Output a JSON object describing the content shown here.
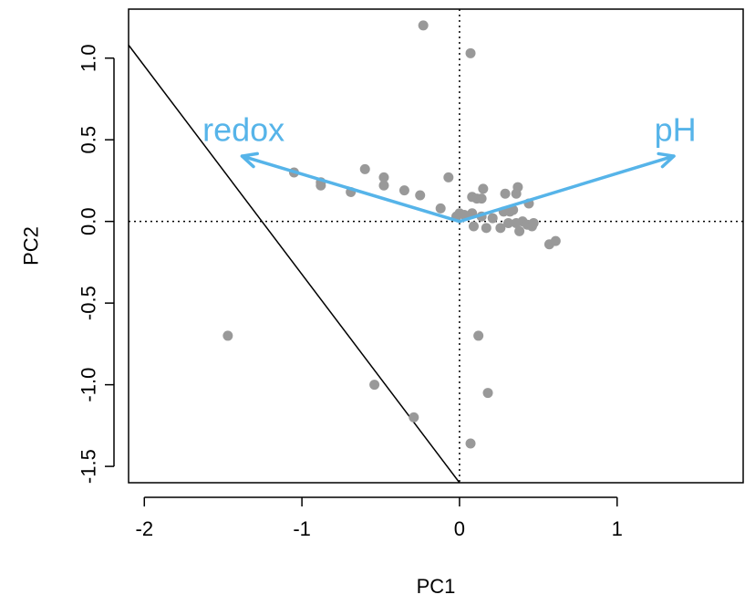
{
  "chart_data": {
    "type": "scatter",
    "xlabel": "PC1",
    "ylabel": "PC2",
    "xlim": [
      -2.1,
      1.8
    ],
    "ylim": [
      -1.6,
      1.3
    ],
    "x_ticks": [
      -2,
      -1,
      0,
      1
    ],
    "y_ticks": [
      -1.5,
      -1.0,
      -0.5,
      0.0,
      0.5,
      1.0
    ],
    "x_tick_labels": [
      "-2",
      "-1",
      "0",
      "1"
    ],
    "y_tick_labels": [
      "-1.5",
      "-1.0",
      "-0.5",
      "0.0",
      "0.5",
      "1.0"
    ],
    "grid": false,
    "reference_lines": {
      "x": 0,
      "y": 0,
      "style": "dotted"
    },
    "point_color": "#999999",
    "vector_color": "#56B4E9",
    "points": [
      {
        "x": -0.23,
        "y": 1.2
      },
      {
        "x": 0.07,
        "y": 1.03
      },
      {
        "x": -1.05,
        "y": 0.3
      },
      {
        "x": -0.88,
        "y": 0.24
      },
      {
        "x": -0.88,
        "y": 0.22
      },
      {
        "x": -0.69,
        "y": 0.18
      },
      {
        "x": -0.6,
        "y": 0.32
      },
      {
        "x": -0.48,
        "y": 0.27
      },
      {
        "x": -0.48,
        "y": 0.22
      },
      {
        "x": -0.35,
        "y": 0.19
      },
      {
        "x": -0.25,
        "y": 0.16
      },
      {
        "x": -0.07,
        "y": 0.27
      },
      {
        "x": -0.12,
        "y": 0.08
      },
      {
        "x": -0.02,
        "y": 0.03
      },
      {
        "x": 0.0,
        "y": 0.05
      },
      {
        "x": 0.03,
        "y": 0.04
      },
      {
        "x": 0.08,
        "y": 0.15
      },
      {
        "x": 0.11,
        "y": 0.14
      },
      {
        "x": 0.15,
        "y": 0.2
      },
      {
        "x": 0.14,
        "y": 0.14
      },
      {
        "x": 0.08,
        "y": 0.05
      },
      {
        "x": 0.14,
        "y": 0.03
      },
      {
        "x": 0.09,
        "y": -0.03
      },
      {
        "x": 0.17,
        "y": -0.04
      },
      {
        "x": 0.21,
        "y": 0.02
      },
      {
        "x": 0.26,
        "y": -0.04
      },
      {
        "x": 0.28,
        "y": 0.06
      },
      {
        "x": 0.29,
        "y": 0.17
      },
      {
        "x": 0.32,
        "y": 0.06
      },
      {
        "x": 0.31,
        "y": -0.01
      },
      {
        "x": 0.34,
        "y": 0.07
      },
      {
        "x": 0.36,
        "y": 0.17
      },
      {
        "x": 0.37,
        "y": 0.21
      },
      {
        "x": 0.36,
        "y": -0.01
      },
      {
        "x": 0.38,
        "y": -0.06
      },
      {
        "x": 0.4,
        "y": 0.0
      },
      {
        "x": 0.43,
        "y": -0.02
      },
      {
        "x": 0.44,
        "y": 0.11
      },
      {
        "x": 0.46,
        "y": -0.03
      },
      {
        "x": 0.47,
        "y": -0.01
      },
      {
        "x": 0.57,
        "y": -0.14
      },
      {
        "x": 0.61,
        "y": -0.12
      },
      {
        "x": -1.47,
        "y": -0.7
      },
      {
        "x": -0.54,
        "y": -1.0
      },
      {
        "x": -0.29,
        "y": -1.2
      },
      {
        "x": 0.12,
        "y": -0.7
      },
      {
        "x": 0.18,
        "y": -1.05
      },
      {
        "x": 0.07,
        "y": -1.36
      }
    ],
    "vectors": [
      {
        "label": "redox",
        "x": -1.38,
        "y": 0.4,
        "label_x": -1.37,
        "label_y": 0.56
      },
      {
        "label": "pH",
        "x": 1.36,
        "y": 0.4,
        "label_x": 1.37,
        "label_y": 0.56
      }
    ],
    "lines": [
      {
        "x1": -2.1,
        "y1": 1.08,
        "x2": 0.0,
        "y2": -1.6
      }
    ]
  }
}
